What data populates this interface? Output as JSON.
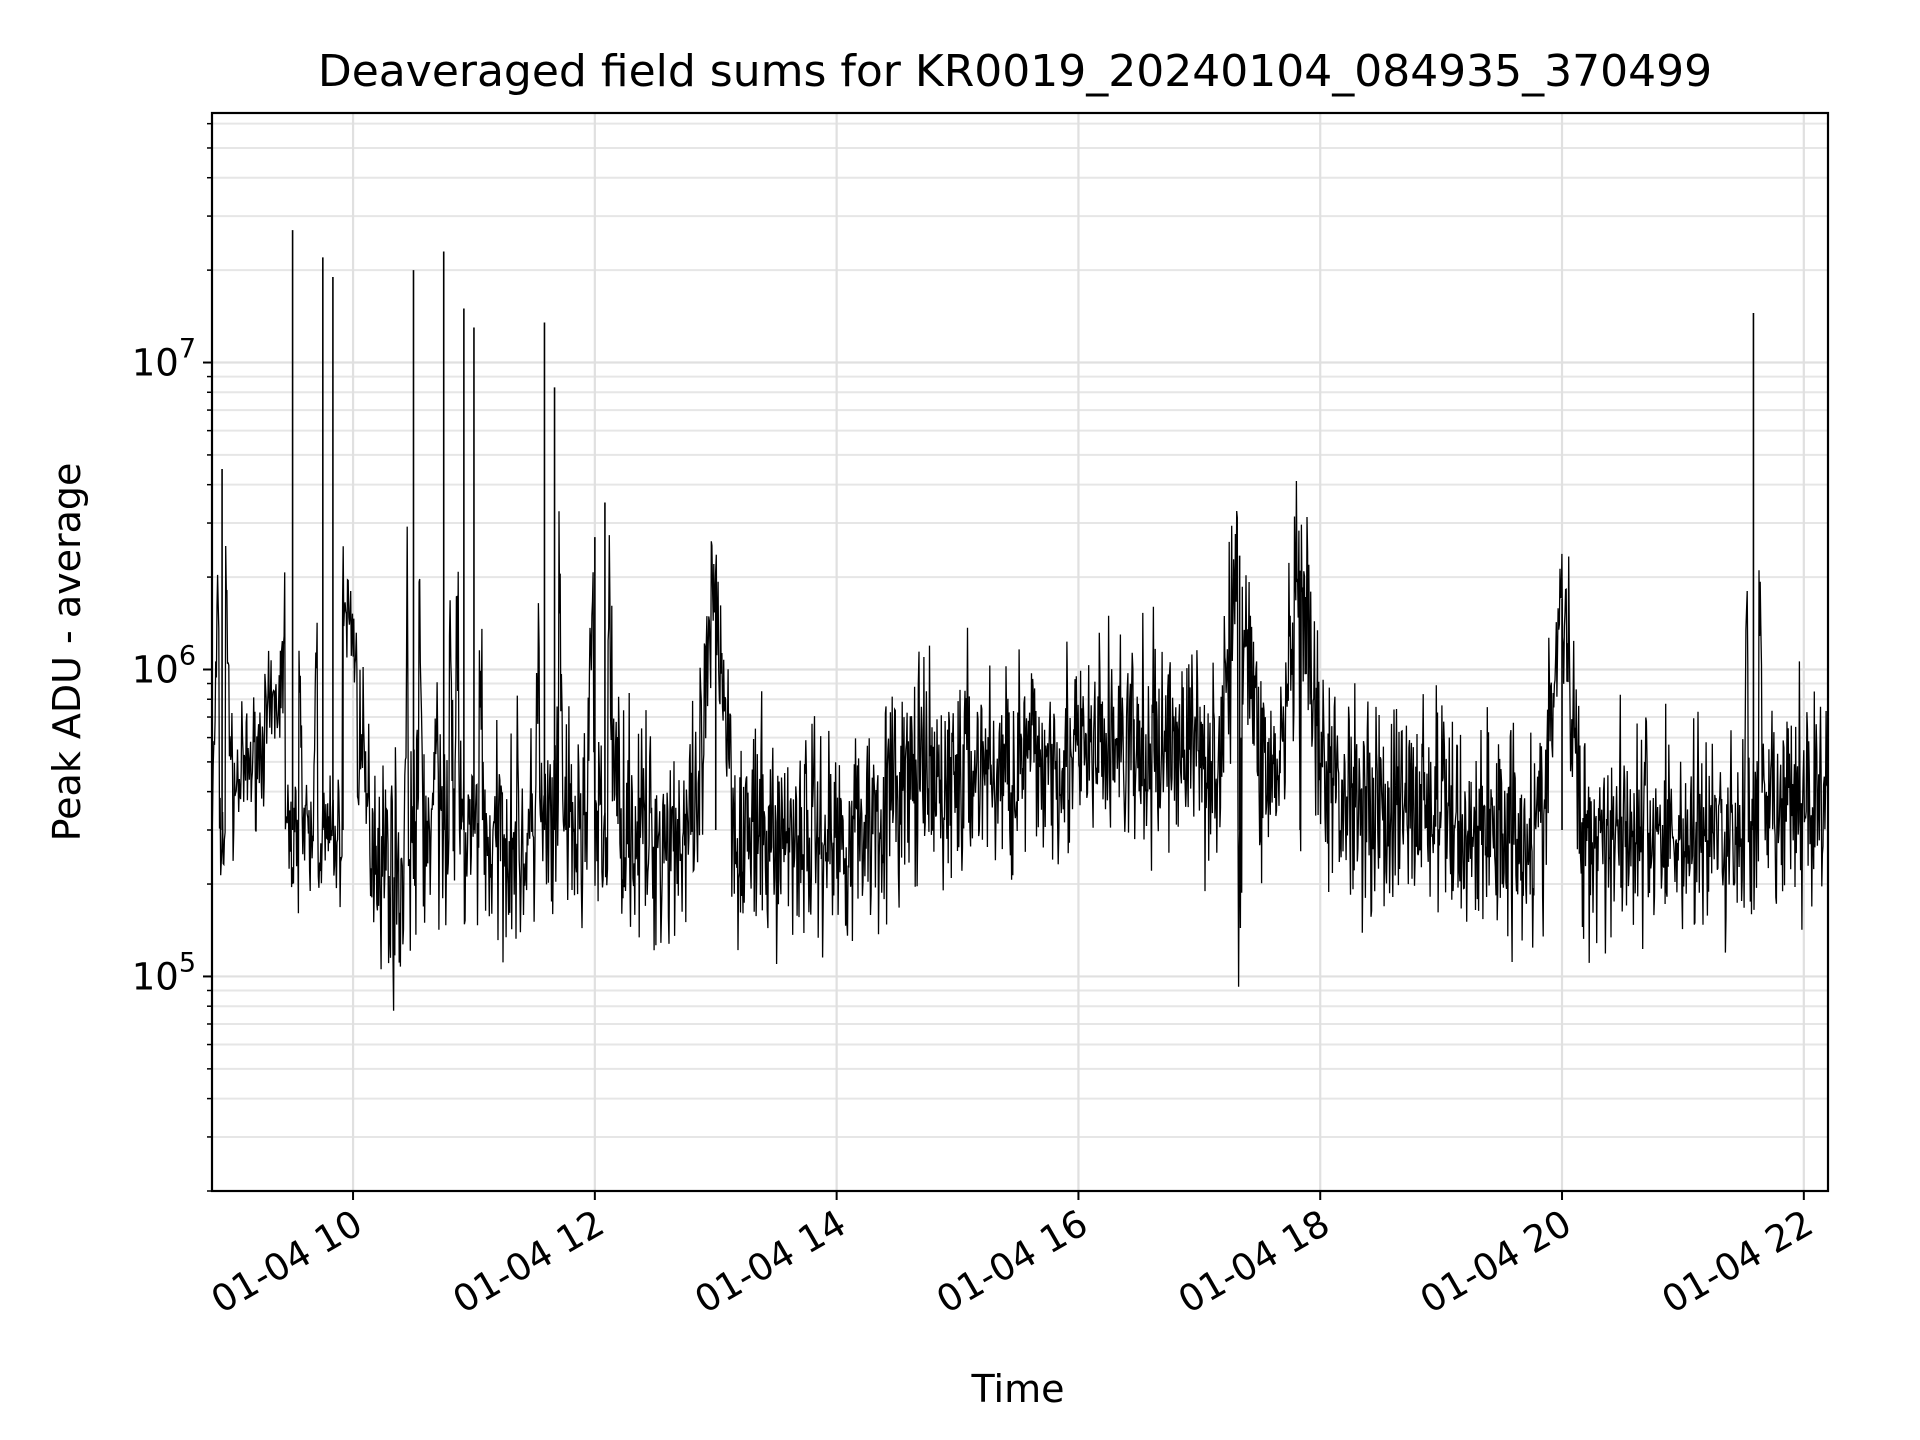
{
  "chart_data": {
    "type": "line",
    "title": "Deaveraged field sums for KR0019_20240104_084935_370499",
    "xlabel": "Time",
    "ylabel": "Peak ADU - average",
    "yscale": "log",
    "xlim": [
      "2024-01-04T08:50",
      "2024-01-04T22:12"
    ],
    "ylim": [
      20000,
      65000000
    ],
    "grid": true,
    "grid_which": "both",
    "line_color": "#000000",
    "x_tick_labels": [
      "01-04 10",
      "01-04 12",
      "01-04 14",
      "01-04 16",
      "01-04 18",
      "01-04 20",
      "01-04 22"
    ],
    "x_tick_values": [
      "2024-01-04T10:00",
      "2024-01-04T12:00",
      "2024-01-04T14:00",
      "2024-01-04T16:00",
      "2024-01-04T18:00",
      "2024-01-04T20:00",
      "2024-01-04T22:00"
    ],
    "y_ticks": [
      {
        "base": "10",
        "exp": "5",
        "value": 100000
      },
      {
        "base": "10",
        "exp": "6",
        "value": 1000000
      },
      {
        "base": "10",
        "exp": "7",
        "value": 10000000
      }
    ],
    "series": [
      {
        "x": [
          "08:50",
          "08:55",
          "09:00",
          "09:05",
          "09:10",
          "09:15",
          "09:20",
          "09:25",
          "09:30",
          "09:35",
          "09:40",
          "09:45",
          "09:50",
          "09:55",
          "10:00",
          "10:05",
          "10:10",
          "10:15",
          "10:20",
          "10:25",
          "10:30",
          "10:35",
          "10:40",
          "10:45",
          "10:50",
          "10:55",
          "11:00",
          "11:05",
          "11:10",
          "11:15",
          "11:20",
          "11:25",
          "11:30",
          "11:35",
          "11:40",
          "11:45",
          "11:50",
          "11:55",
          "12:00",
          "12:05",
          "12:10",
          "12:15",
          "12:20",
          "12:30",
          "12:40",
          "12:50",
          "13:00",
          "13:10",
          "13:20",
          "13:30",
          "13:40",
          "13:50",
          "14:00",
          "14:10",
          "14:20",
          "14:30",
          "14:40",
          "14:50",
          "15:00",
          "15:10",
          "15:20",
          "15:30",
          "15:40",
          "15:50",
          "16:00",
          "16:10",
          "16:20",
          "16:30",
          "16:40",
          "16:50",
          "17:00",
          "17:10",
          "17:20",
          "17:30",
          "17:40",
          "17:50",
          "18:00",
          "18:10",
          "18:20",
          "18:30",
          "18:40",
          "18:50",
          "19:00",
          "19:10",
          "19:20",
          "19:30",
          "19:40",
          "19:50",
          "20:00",
          "20:10",
          "20:20",
          "20:30",
          "20:40",
          "20:50",
          "21:00",
          "21:10",
          "21:20",
          "21:30",
          "21:35",
          "21:40",
          "21:50",
          "22:00",
          "22:05",
          "22:10"
        ],
        "y": [
          300000,
          4500000,
          400000,
          450000,
          500000,
          600000,
          700000,
          900000,
          27000000,
          300000,
          250000,
          22000000,
          19000000,
          1600000,
          1400000,
          400000,
          300000,
          250000,
          220000,
          200000,
          20000000,
          300000,
          250000,
          23000000,
          300000,
          15000000,
          13000000,
          280000,
          250000,
          300000,
          300000,
          260000,
          280000,
          13500000,
          8300000,
          300000,
          280000,
          300000,
          2700000,
          3500000,
          400000,
          350000,
          300000,
          280000,
          300000,
          280000,
          1900000,
          300000,
          280000,
          280000,
          300000,
          300000,
          280000,
          300000,
          350000,
          400000,
          450000,
          400000,
          450000,
          500000,
          450000,
          500000,
          500000,
          550000,
          500000,
          550000,
          600000,
          500000,
          550000,
          600000,
          550000,
          500000,
          2350000,
          500000,
          450000,
          2100000,
          450000,
          400000,
          400000,
          350000,
          350000,
          380000,
          350000,
          300000,
          300000,
          320000,
          300000,
          300000,
          1700000,
          300000,
          300000,
          320000,
          300000,
          300000,
          280000,
          300000,
          280000,
          300000,
          14500000,
          300000,
          350000,
          380000,
          400000,
          420000
        ]
      }
    ]
  }
}
